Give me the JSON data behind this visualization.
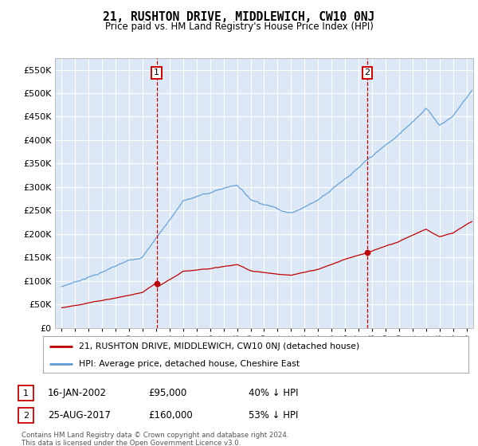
{
  "title": "21, RUSHTON DRIVE, MIDDLEWICH, CW10 0NJ",
  "subtitle": "Price paid vs. HM Land Registry's House Price Index (HPI)",
  "footer": "Contains HM Land Registry data © Crown copyright and database right 2024.\nThis data is licensed under the Open Government Licence v3.0.",
  "legend_line1": "21, RUSHTON DRIVE, MIDDLEWICH, CW10 0NJ (detached house)",
  "legend_line2": "HPI: Average price, detached house, Cheshire East",
  "ann1_label": "1",
  "ann1_date_x": 2002.04,
  "ann1_price": 95000,
  "ann1_text_date": "16-JAN-2002",
  "ann1_text_price": "£95,000",
  "ann1_text_hpi": "40% ↓ HPI",
  "ann2_label": "2",
  "ann2_date_x": 2017.65,
  "ann2_price": 160000,
  "ann2_text_date": "25-AUG-2017",
  "ann2_text_price": "£160,000",
  "ann2_text_hpi": "53% ↓ HPI",
  "hpi_color": "#5b9bd5",
  "price_color": "#c00000",
  "annotation_color": "#cc0000",
  "plot_bg": "#dce8f5",
  "fig_bg": "#ffffff",
  "grid_color": "#ffffff",
  "ylim_max": 575000,
  "xlim_start": 1994.5,
  "xlim_end": 2025.5,
  "yticks": [
    0,
    50000,
    100000,
    150000,
    200000,
    250000,
    300000,
    350000,
    400000,
    450000,
    500000,
    550000
  ]
}
